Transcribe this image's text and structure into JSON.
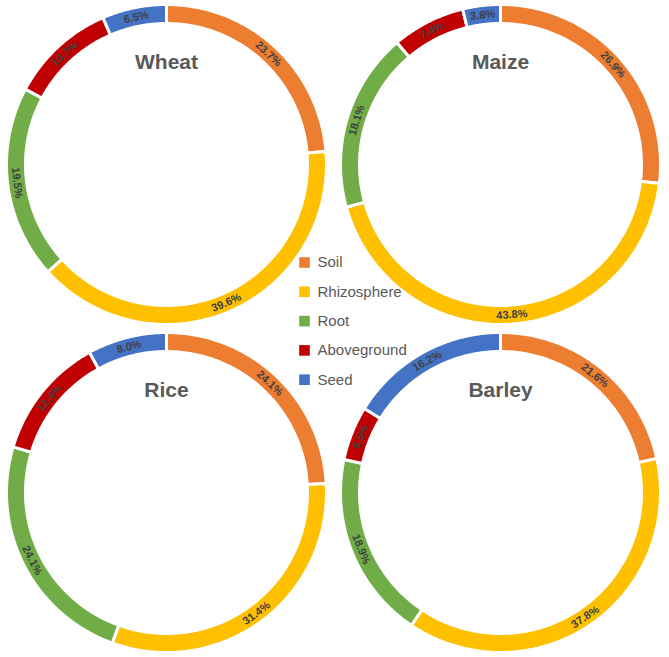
{
  "chart_data": [
    {
      "type": "pie",
      "title": "Wheat",
      "categories": [
        "Soil",
        "Rhizosphere",
        "Root",
        "Aboveground",
        "Seed"
      ],
      "values": [
        23.7,
        39.6,
        19.5,
        10.7,
        6.5
      ],
      "value_labels": [
        "23.7%",
        "39.6%",
        "19.5%",
        "10.7%",
        "6.5%"
      ],
      "colors": [
        "#ed7d31",
        "#ffc000",
        "#70ad47",
        "#c00000",
        "#4472c4"
      ],
      "data_labels": true,
      "legend": "center"
    },
    {
      "type": "pie",
      "title": "Maize",
      "categories": [
        "Soil",
        "Rhizosphere",
        "Root",
        "Aboveground",
        "Seed"
      ],
      "values": [
        26.9,
        43.8,
        18.1,
        7.4,
        3.8
      ],
      "value_labels": [
        "26.9%",
        "43.8%",
        "18.1%",
        "7.4%",
        "3.8%"
      ],
      "colors": [
        "#ed7d31",
        "#ffc000",
        "#70ad47",
        "#c00000",
        "#4472c4"
      ],
      "data_labels": true,
      "legend": "center"
    },
    {
      "type": "pie",
      "title": "Rice",
      "categories": [
        "Soil",
        "Rhizosphere",
        "Root",
        "Aboveground",
        "Seed"
      ],
      "values": [
        24.1,
        31.4,
        24.1,
        12.4,
        8.0
      ],
      "value_labels": [
        "24.1%",
        "31.4%",
        "24.1%",
        "12.4%",
        "8.0%"
      ],
      "colors": [
        "#ed7d31",
        "#ffc000",
        "#70ad47",
        "#c00000",
        "#4472c4"
      ],
      "data_labels": true,
      "legend": "center"
    },
    {
      "type": "pie",
      "title": "Barley",
      "categories": [
        "Soil",
        "Rhizosphere",
        "Root",
        "Aboveground",
        "Seed"
      ],
      "values": [
        21.6,
        37.8,
        18.9,
        5.5,
        16.2
      ],
      "value_labels": [
        "21.6%",
        "37.8%",
        "18.9%",
        "5.5%",
        "16.2%"
      ],
      "colors": [
        "#ed7d31",
        "#ffc000",
        "#70ad47",
        "#c00000",
        "#4472c4"
      ],
      "data_labels": true,
      "legend": "center"
    }
  ]
}
